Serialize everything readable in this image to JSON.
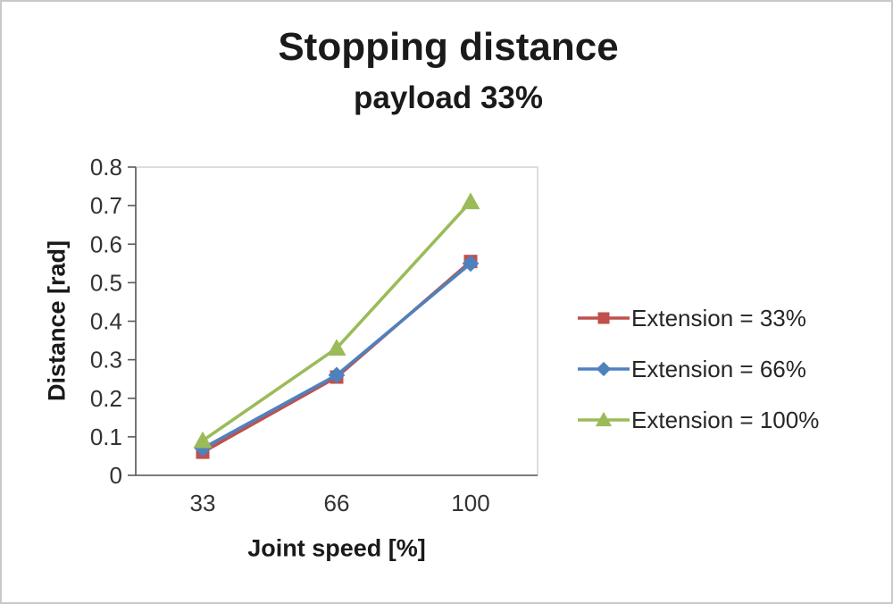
{
  "page": {
    "background": "#ffffff",
    "border_color": "#c9c9c9",
    "axis_color": "#595959",
    "plot_border_color": "#d3d3d3"
  },
  "chart_data": {
    "type": "line",
    "title": "Stopping distance",
    "subtitle": "payload 33%",
    "xlabel": "Joint speed [%]",
    "ylabel": "Distance [rad]",
    "categories": [
      "33",
      "66",
      "100"
    ],
    "ylim": [
      0,
      0.8
    ],
    "ytick_step": 0.1,
    "ytick_labels": [
      "0",
      "0.1",
      "0.2",
      "0.3",
      "0.4",
      "0.5",
      "0.6",
      "0.7",
      "0.8"
    ],
    "grid": false,
    "legend_position": "right",
    "series": [
      {
        "name": "Extension = 33%",
        "marker": "square",
        "color": "#c0504d",
        "values": [
          0.06,
          0.255,
          0.555
        ]
      },
      {
        "name": "Extension = 66%",
        "marker": "diamond",
        "color": "#4f81bd",
        "values": [
          0.07,
          0.26,
          0.55
        ]
      },
      {
        "name": "Extension = 100%",
        "marker": "triangle",
        "color": "#9bbb59",
        "values": [
          0.09,
          0.33,
          0.71
        ]
      }
    ]
  }
}
